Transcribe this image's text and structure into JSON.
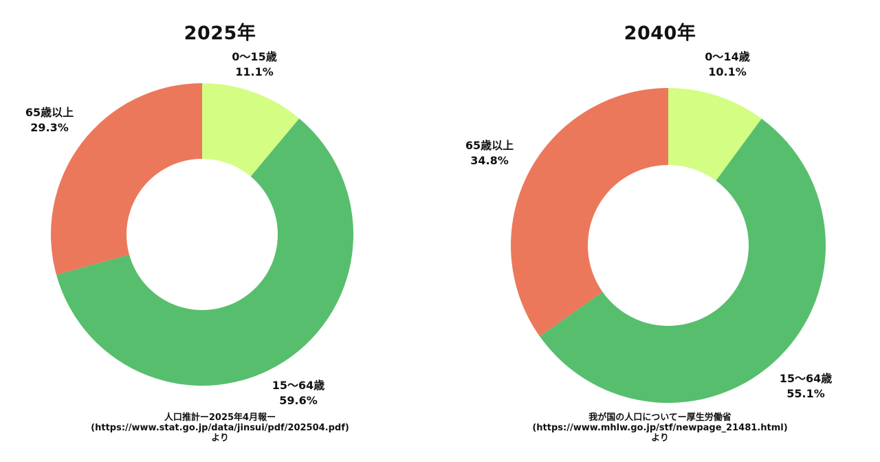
{
  "chart_data": [
    {
      "type": "pie",
      "title": "2025年",
      "slices": [
        {
          "label": "0〜15歳",
          "value": 11.1,
          "value_label": "11.1%",
          "color": "#d4fd84"
        },
        {
          "label": "15〜64歳",
          "value": 59.6,
          "value_label": "59.6%",
          "color": "#57be6d"
        },
        {
          "label": "65歳以上",
          "value": 29.3,
          "value_label": "29.3%",
          "color": "#ec785b"
        }
      ],
      "source": {
        "line1": "人口推計ー2025年4月報ー",
        "line2": "(https://www.stat.go.jp/data/jinsui/pdf/202504.pdf)",
        "line3": "より"
      }
    },
    {
      "type": "pie",
      "title": "2040年",
      "slices": [
        {
          "label": "0〜14歳",
          "value": 10.1,
          "value_label": "10.1%",
          "color": "#d4fd84"
        },
        {
          "label": "15〜64歳",
          "value": 55.1,
          "value_label": "55.1%",
          "color": "#57be6d"
        },
        {
          "label": "65歳以上",
          "value": 34.8,
          "value_label": "34.8%",
          "color": "#ec785b"
        }
      ],
      "source": {
        "line1": "我が国の人口についてー厚生労働省",
        "line2": "(https://www.mhlw.go.jp/stf/newpage_21481.html)",
        "line3": "より"
      }
    }
  ]
}
